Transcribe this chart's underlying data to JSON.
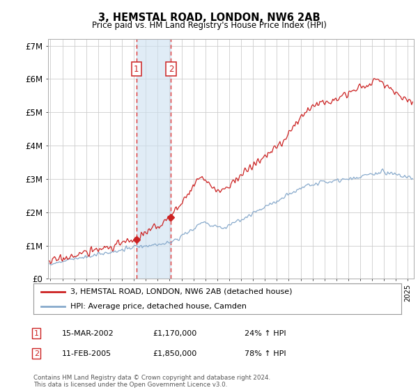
{
  "title": "3, HEMSTAL ROAD, LONDON, NW6 2AB",
  "subtitle": "Price paid vs. HM Land Registry's House Price Index (HPI)",
  "ylabel_ticks": [
    "£0",
    "£1M",
    "£2M",
    "£3M",
    "£4M",
    "£5M",
    "£6M",
    "£7M"
  ],
  "ytick_values": [
    0,
    1000000,
    2000000,
    3000000,
    4000000,
    5000000,
    6000000,
    7000000
  ],
  "ylim": [
    0,
    7200000
  ],
  "xlim_start": 1994.8,
  "xlim_end": 2025.5,
  "sale1_x": 2002.21,
  "sale1_y": 1170000,
  "sale1_label": "1",
  "sale2_x": 2005.12,
  "sale2_y": 1850000,
  "sale2_label": "2",
  "shaded_x1": 2002.21,
  "shaded_x2": 2005.12,
  "line_red_color": "#cc2222",
  "line_blue_color": "#88aacc",
  "legend_red_label": "3, HEMSTAL ROAD, LONDON, NW6 2AB (detached house)",
  "legend_blue_label": "HPI: Average price, detached house, Camden",
  "table_rows": [
    {
      "num": "1",
      "date": "15-MAR-2002",
      "price": "£1,170,000",
      "pct": "24% ↑ HPI"
    },
    {
      "num": "2",
      "date": "11-FEB-2005",
      "price": "£1,850,000",
      "pct": "78% ↑ HPI"
    }
  ],
  "footnote": "Contains HM Land Registry data © Crown copyright and database right 2024.\nThis data is licensed under the Open Government Licence v3.0.",
  "background_color": "#ffffff",
  "grid_color": "#cccccc"
}
